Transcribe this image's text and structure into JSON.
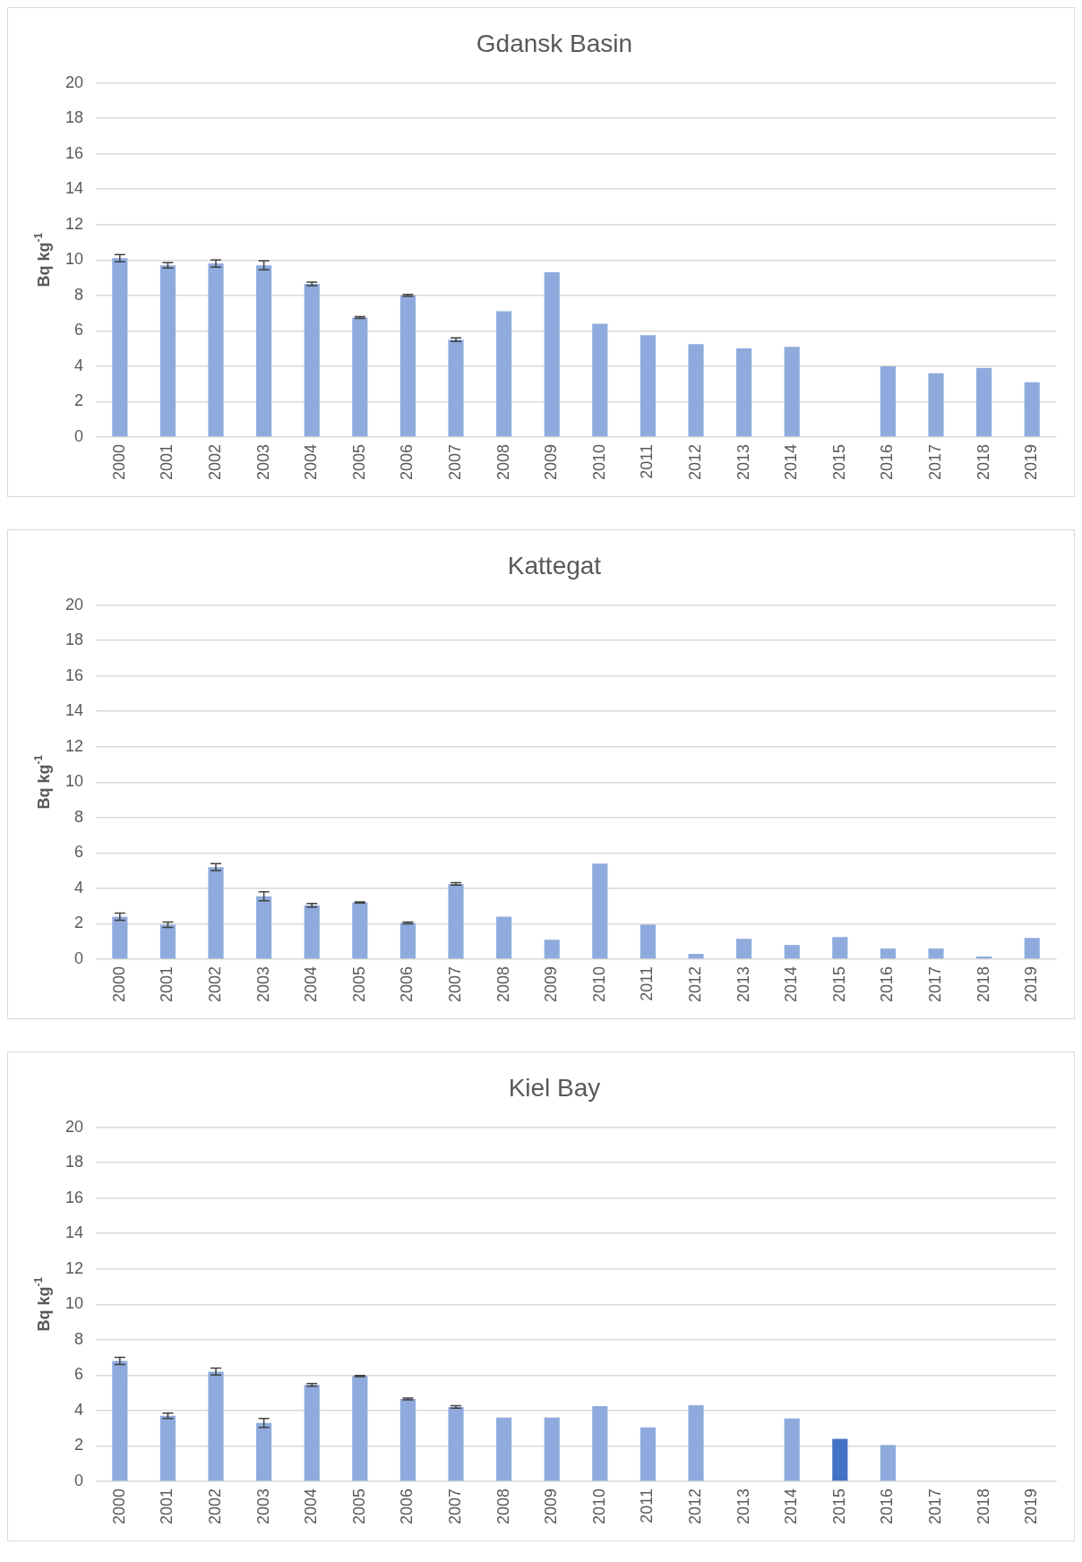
{
  "chart_data": [
    {
      "type": "bar",
      "title": "Gdansk Basin",
      "ylabel": "Bq kg$^{-1}$",
      "categories": [
        "2000",
        "2001",
        "2002",
        "2003",
        "2004",
        "2005",
        "2006",
        "2007",
        "2008",
        "2009",
        "2010",
        "2011",
        "2012",
        "2013",
        "2014",
        "2015",
        "2016",
        "2017",
        "2018",
        "2019"
      ],
      "values": [
        10.1,
        9.7,
        9.8,
        9.7,
        8.65,
        6.75,
        8.0,
        5.5,
        7.1,
        9.3,
        6.4,
        5.75,
        5.25,
        5.0,
        5.1,
        null,
        4.0,
        3.6,
        3.9,
        3.1
      ],
      "errors": [
        0.2,
        0.15,
        0.2,
        0.25,
        0.1,
        0.05,
        0.05,
        0.1,
        null,
        null,
        null,
        null,
        null,
        null,
        null,
        null,
        null,
        null,
        null,
        null
      ],
      "color": "#8faadc",
      "ylim": [
        0,
        20
      ],
      "yticks": [
        0,
        2,
        4,
        6,
        8,
        10,
        12,
        14,
        16,
        18,
        20
      ],
      "grid": "y",
      "legend": false
    },
    {
      "type": "bar",
      "title": "Kattegat",
      "ylabel": "Bq kg$^{-1}$",
      "categories": [
        "2000",
        "2001",
        "2002",
        "2003",
        "2004",
        "2005",
        "2006",
        "2007",
        "2008",
        "2009",
        "2010",
        "2011",
        "2012",
        "2013",
        "2014",
        "2015",
        "2016",
        "2017",
        "2018",
        "2019"
      ],
      "values": [
        2.4,
        1.95,
        5.2,
        3.55,
        3.05,
        3.2,
        2.05,
        4.25,
        2.4,
        1.1,
        5.4,
        1.95,
        0.3,
        1.15,
        0.8,
        1.25,
        0.6,
        0.6,
        0.15,
        1.2
      ],
      "errors": [
        0.2,
        0.15,
        0.2,
        0.25,
        0.1,
        0.03,
        0.05,
        0.07,
        null,
        null,
        null,
        null,
        null,
        null,
        null,
        null,
        null,
        null,
        null,
        null
      ],
      "color": "#8faadc",
      "ylim": [
        0,
        20
      ],
      "yticks": [
        0,
        2,
        4,
        6,
        8,
        10,
        12,
        14,
        16,
        18,
        20
      ],
      "grid": "y",
      "legend": false
    },
    {
      "type": "bar",
      "title": "Kiel Bay",
      "ylabel": "Bq kg$^{-1}$",
      "categories": [
        "2000",
        "2001",
        "2002",
        "2003",
        "2004",
        "2005",
        "2006",
        "2007",
        "2008",
        "2009",
        "2010",
        "2011",
        "2012",
        "2013",
        "2014",
        "2015",
        "2016",
        "2017",
        "2018",
        "2019"
      ],
      "values": [
        6.8,
        3.7,
        6.2,
        3.3,
        5.45,
        5.95,
        4.65,
        4.2,
        3.6,
        3.6,
        4.25,
        3.05,
        4.3,
        null,
        3.55,
        2.4,
        2.05,
        null,
        null,
        null
      ],
      "errors": [
        0.2,
        0.15,
        0.2,
        0.25,
        0.08,
        0.03,
        0.05,
        0.07,
        null,
        null,
        null,
        null,
        null,
        null,
        null,
        null,
        null,
        null,
        null,
        null
      ],
      "colors": [
        "#8faadc",
        "#8faadc",
        "#8faadc",
        "#8faadc",
        "#8faadc",
        "#8faadc",
        "#8faadc",
        "#8faadc",
        "#8faadc",
        "#8faadc",
        "#8faadc",
        "#8faadc",
        "#8faadc",
        "#8faadc",
        "#8faadc",
        "#4472c4",
        "#8faadc",
        "#8faadc",
        "#8faadc",
        "#8faadc"
      ],
      "ylim": [
        0,
        20
      ],
      "yticks": [
        0,
        2,
        4,
        6,
        8,
        10,
        12,
        14,
        16,
        18,
        20
      ],
      "grid": "y",
      "legend": false
    }
  ]
}
